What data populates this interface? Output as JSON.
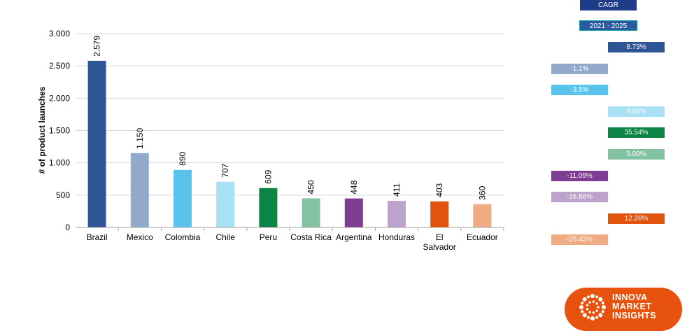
{
  "chart_data": {
    "type": "bar",
    "title": "",
    "xlabel": "",
    "ylabel": "# of product launches",
    "ylim": [
      0,
      3000
    ],
    "yticks": [
      0,
      500,
      1000,
      1500,
      2000,
      2500,
      3000
    ],
    "ytick_labels": [
      "0",
      "500",
      "1.000",
      "1.500",
      "2.000",
      "2.500",
      "3.000"
    ],
    "grid": true,
    "categories": [
      "Brazil",
      "Mexico",
      "Colombia",
      "Chile",
      "Peru",
      "Costa Rica",
      "Argentina",
      "Honduras",
      "El Salvador",
      "Ecuador"
    ],
    "category_labels": [
      [
        "Brazil"
      ],
      [
        "Mexico"
      ],
      [
        "Colombia"
      ],
      [
        "Chile"
      ],
      [
        "Peru"
      ],
      [
        "Costa Rica"
      ],
      [
        "Argentina"
      ],
      [
        "Honduras"
      ],
      [
        "El",
        "Salvador"
      ],
      [
        "Ecuador"
      ]
    ],
    "values": [
      2579,
      1150,
      890,
      707,
      609,
      450,
      448,
      411,
      403,
      360
    ],
    "value_labels": [
      "2.579",
      "1.150",
      "890",
      "707",
      "609",
      "450",
      "448",
      "411",
      "403",
      "360"
    ],
    "colors": [
      "#2e5596",
      "#93a9cb",
      "#58c4ec",
      "#a8e0f5",
      "#0b8444",
      "#84c2a4",
      "#7e3c93",
      "#bda3cb",
      "#e0540e",
      "#eeab84"
    ]
  },
  "cagr": {
    "header": "CAGR",
    "period": "2021 - 2025",
    "values": [
      8.73,
      -1.1,
      -3.5,
      9.88,
      35.54,
      3.09,
      -11.09,
      -16.86,
      12.26,
      -25.43
    ],
    "labels": [
      "8.73%",
      "-1.1%",
      "-3.5%",
      "9.88%",
      "35.54%",
      "3.09%",
      "-11.09%",
      "-16.86%",
      "12.26%",
      "-25.43%"
    ]
  },
  "logo": {
    "text": "INNOVA\nMARKET\nINSIGHTS",
    "color": "#e8520f"
  }
}
